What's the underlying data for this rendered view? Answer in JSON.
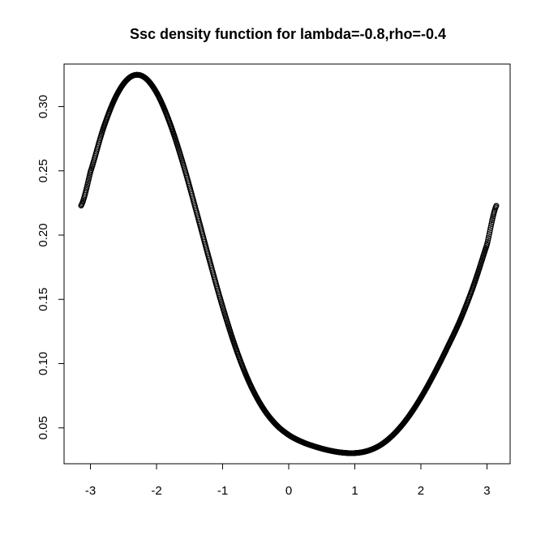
{
  "chart_data": {
    "type": "scatter",
    "title": "Ssc density function for lambda=-0.8,rho=-0.4",
    "xlabel": "",
    "ylabel": "",
    "xlim": [
      -3.1416,
      3.1416
    ],
    "ylim": [
      0.0221,
      0.3331
    ],
    "x_ticks": [
      -3,
      -2,
      -1,
      0,
      1,
      2,
      3
    ],
    "x_tick_labels": [
      "-3",
      "-2",
      "-1",
      "0",
      "1",
      "2",
      "3"
    ],
    "y_ticks": [
      0.05,
      0.1,
      0.15,
      0.2,
      0.25,
      0.3
    ],
    "y_tick_labels": [
      "0.05",
      "0.10",
      "0.15",
      "0.20",
      "0.25",
      "0.30"
    ],
    "grid": false,
    "legend": false,
    "marker": "open-circle",
    "series": [
      {
        "x": [
          -3.1416,
          -3.0,
          -2.8,
          -2.6,
          -2.4,
          -2.2,
          -2.0,
          -1.8,
          -1.6,
          -1.4,
          -1.2,
          -1.0,
          -0.8,
          -0.6,
          -0.4,
          -0.2,
          0.0,
          0.2,
          0.4,
          0.6,
          0.8,
          1.0,
          1.2,
          1.4,
          1.6,
          1.8,
          2.0,
          2.2,
          2.4,
          2.6,
          2.8,
          3.0,
          3.1416
        ],
        "y": [
          0.2229,
          0.2493,
          0.2838,
          0.3093,
          0.3229,
          0.3233,
          0.3109,
          0.2874,
          0.2557,
          0.2189,
          0.1807,
          0.1442,
          0.1119,
          0.0857,
          0.0663,
          0.053,
          0.0445,
          0.0391,
          0.0354,
          0.0326,
          0.0308,
          0.0304,
          0.0322,
          0.037,
          0.0456,
          0.0578,
          0.0735,
          0.092,
          0.1125,
          0.1345,
          0.1611,
          0.1926,
          0.2229
        ]
      }
    ]
  }
}
